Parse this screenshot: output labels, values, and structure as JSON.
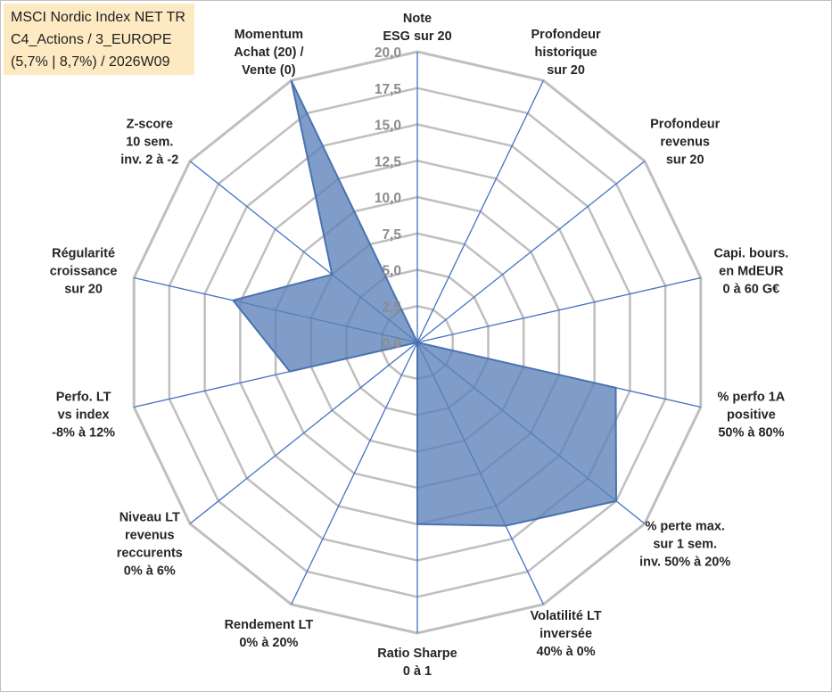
{
  "info_box": {
    "line1": "MSCI Nordic Index NET TR",
    "line2": "C4_Actions / 3_EUROPE",
    "line3": "(5,7% | 8,7%) / 2026W09"
  },
  "chart_data": {
    "type": "radar",
    "title": "",
    "rmin": 0,
    "rmax": 20,
    "tick_values": [
      0,
      2.5,
      5,
      7.5,
      10,
      12.5,
      15,
      17.5,
      20
    ],
    "tick_labels": [
      "0,0",
      "2,5",
      "5,0",
      "7,5",
      "10,0",
      "12,5",
      "15,0",
      "17,5",
      "20,0"
    ],
    "axes": [
      {
        "label": [
          "Note",
          "ESG sur 20"
        ],
        "value": 0
      },
      {
        "label": [
          "Profondeur",
          "historique",
          "sur 20"
        ],
        "value": 0
      },
      {
        "label": [
          "Profondeur",
          "revenus",
          "sur 20"
        ],
        "value": 0
      },
      {
        "label": [
          "Capi. bours.",
          "en MdEUR",
          "0 à 60 G€"
        ],
        "value": 0
      },
      {
        "label": [
          "% perfo 1A",
          "positive",
          "50% à 80%"
        ],
        "value": 14
      },
      {
        "label": [
          "% perte max.",
          "sur 1 sem.",
          "inv. 50% à 20%"
        ],
        "value": 17.5
      },
      {
        "label": [
          "Volatilité LT",
          "inversée",
          "40% à 0%"
        ],
        "value": 14
      },
      {
        "label": [
          "Ratio Sharpe",
          "0 à 1"
        ],
        "value": 12.5
      },
      {
        "label": [
          "Rendement LT",
          "0% à 20%"
        ],
        "value": 0
      },
      {
        "label": [
          "Niveau LT",
          "revenus",
          "reccurents",
          "0% à 6%"
        ],
        "value": 0
      },
      {
        "label": [
          "Perfo. LT",
          "vs index",
          "-8% à 12%"
        ],
        "value": 9
      },
      {
        "label": [
          "Régularité",
          "croissance",
          "sur 20"
        ],
        "value": 13
      },
      {
        "label": [
          "Z-score",
          "10 sem.",
          "inv. 2 à -2"
        ],
        "value": 7.5
      },
      {
        "label": [
          "Momentum",
          "Achat (20) /",
          "Vente (0)"
        ],
        "value": 20
      }
    ],
    "series": [
      {
        "name": "MSCI Nordic Index NET TR",
        "color": "#4a72b0"
      }
    ],
    "colors": {
      "grid": "#bfbfbf",
      "spoke": "#4472c4",
      "fill": "#5b82b8",
      "stroke": "#4a72b0"
    }
  }
}
